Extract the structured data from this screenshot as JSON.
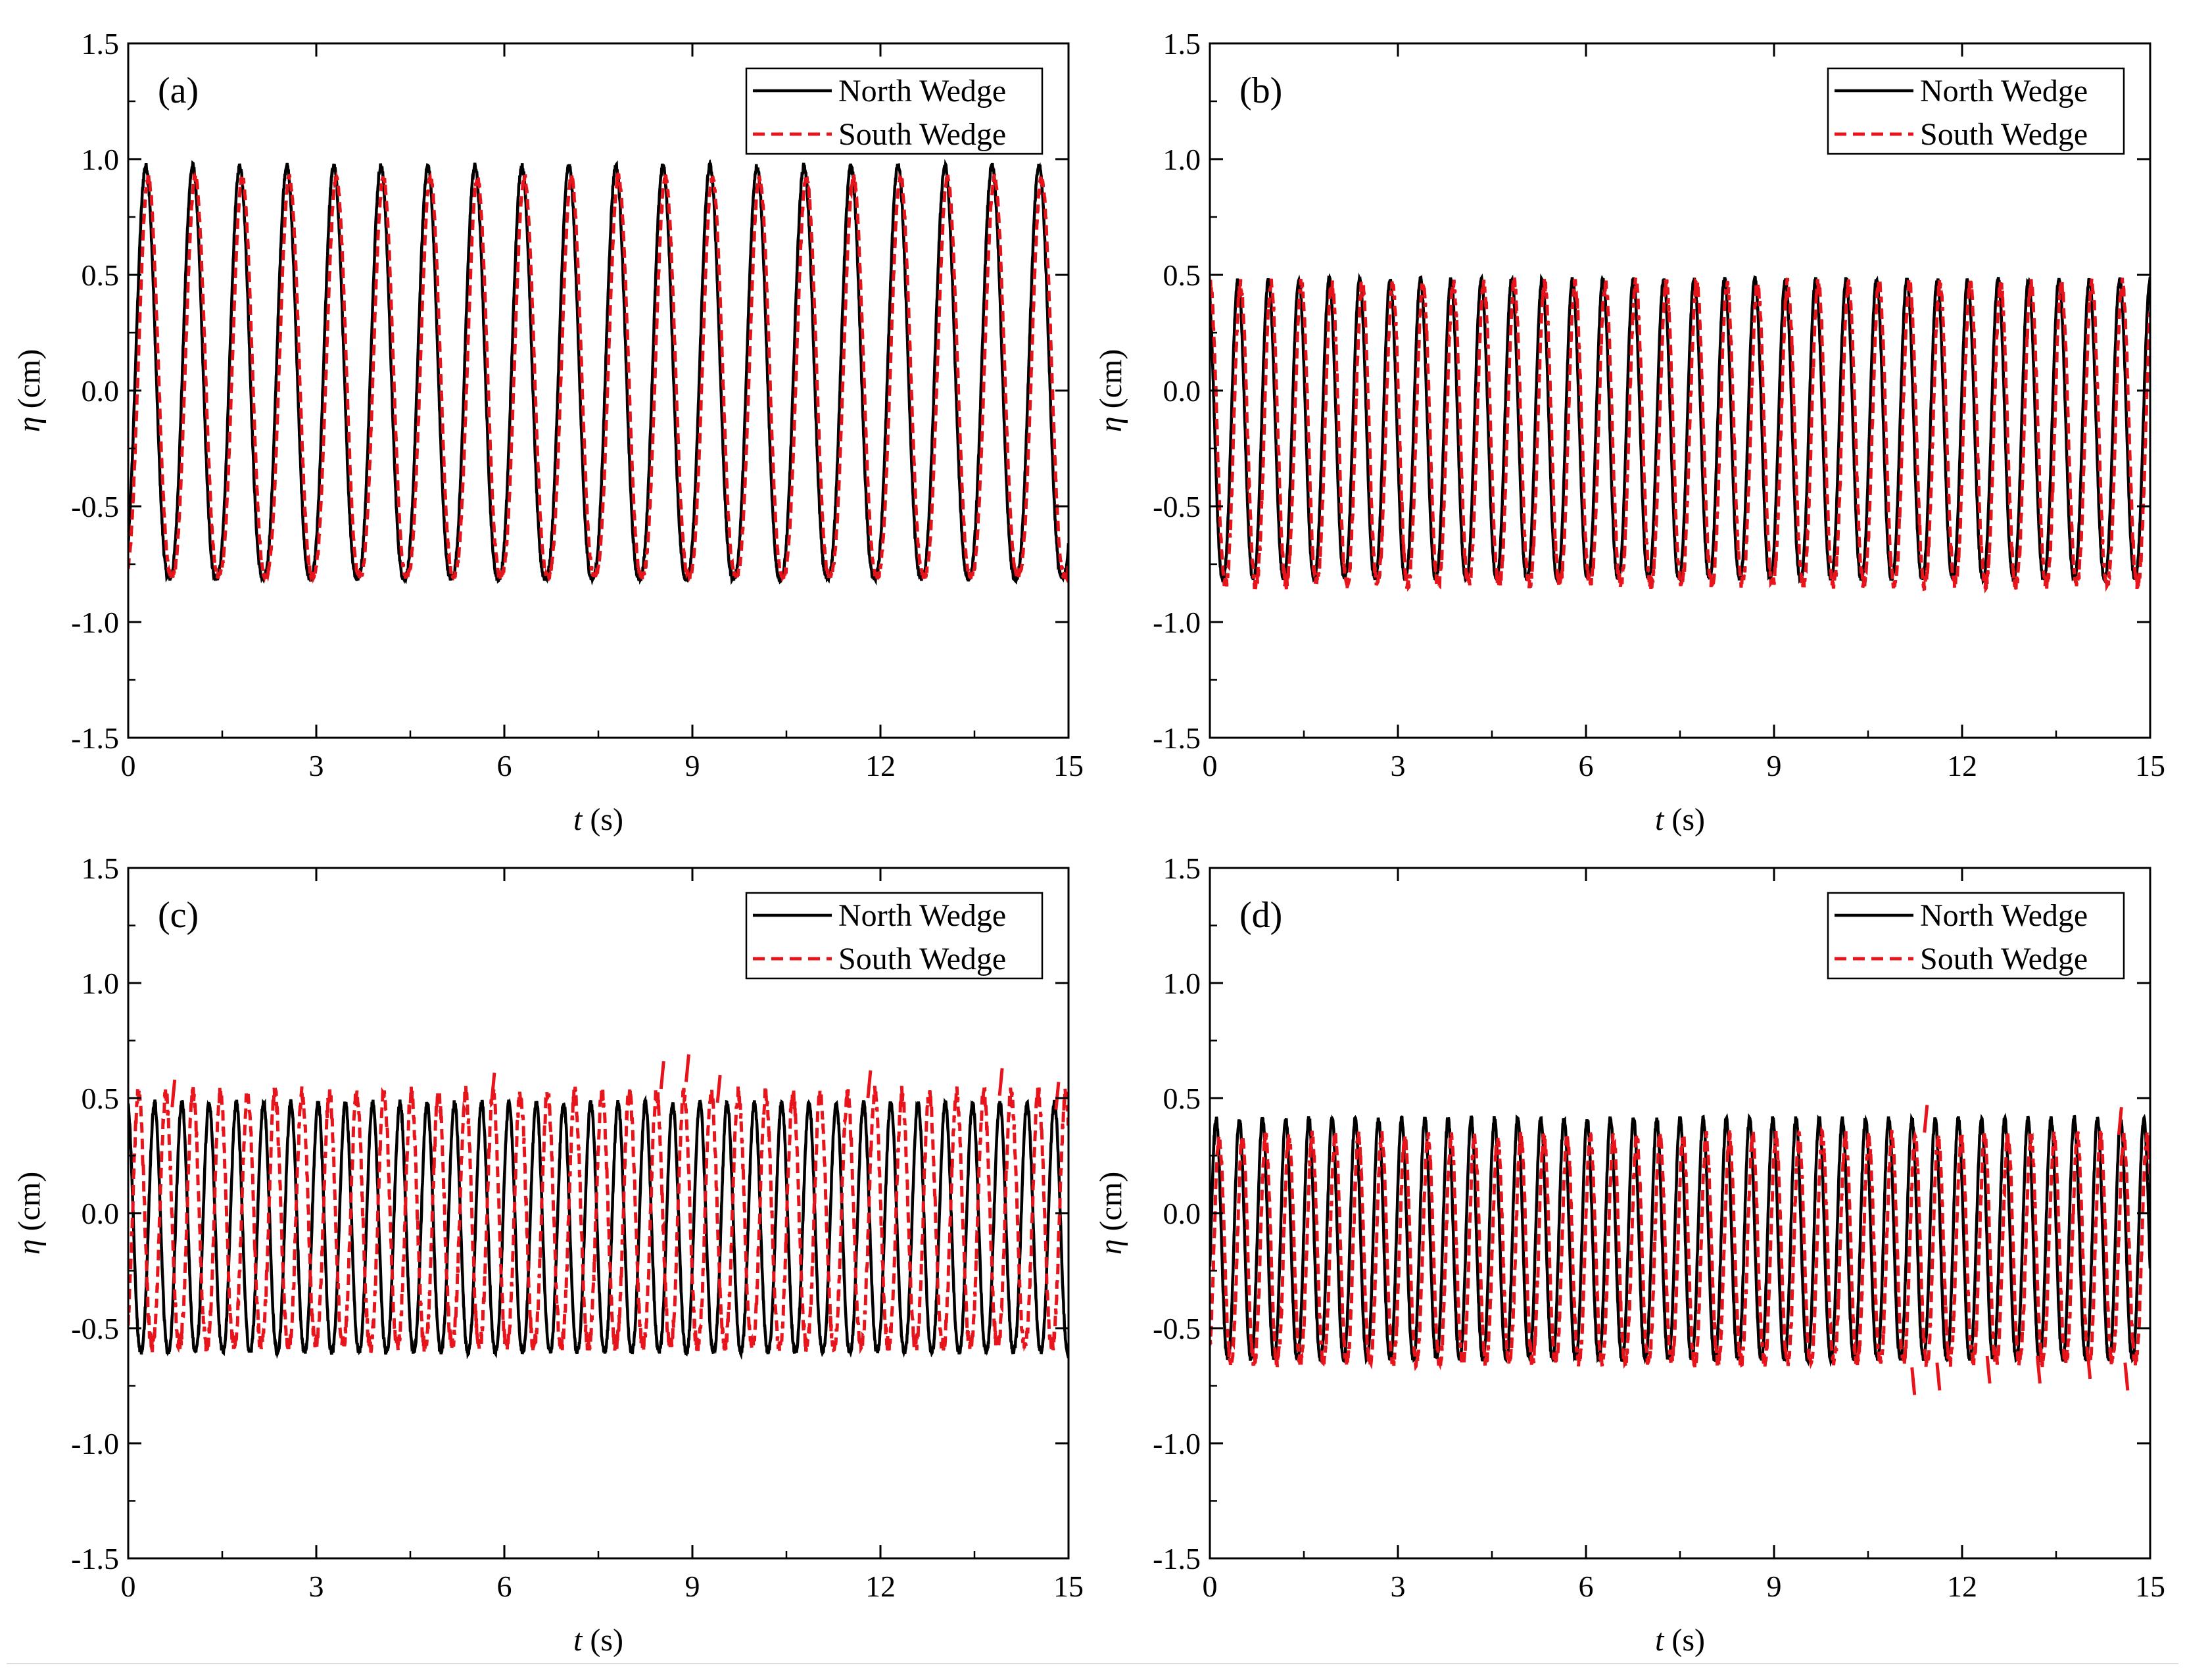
{
  "figure": {
    "colors": {
      "north": "#000000",
      "south": "#e8141b",
      "axis": "#000000",
      "footer_line": "#dddddd"
    }
  },
  "chart_data": [
    {
      "type": "line",
      "panel_label": "(a)",
      "xlabel_var": "t",
      "xlabel_unit": " (s)",
      "ylabel_var": "η",
      "ylabel_unit": " (cm)",
      "xlim": [
        0,
        15
      ],
      "ylim": [
        -1.5,
        1.5
      ],
      "xticks": [
        0,
        3,
        6,
        9,
        12,
        15
      ],
      "xtick_labels": [
        "0",
        "3",
        "6",
        "9",
        "12",
        "15"
      ],
      "yticks": [
        -1.5,
        -1.0,
        -0.5,
        0.0,
        0.5,
        1.0,
        1.5
      ],
      "ytick_labels": [
        "-1.5",
        "-1.0",
        "-0.5",
        "0.0",
        "0.5",
        "1.0",
        "1.5"
      ],
      "legend": {
        "position": "top-right",
        "entries": [
          "North Wedge",
          "South Wedge"
        ]
      },
      "series": [
        {
          "name": "North Wedge",
          "style": "solid",
          "period": 0.75,
          "phase": 0.28,
          "max": 0.97,
          "min": -0.81,
          "sharpness": 1.3,
          "noise": 0.015,
          "spikes": []
        },
        {
          "name": "South Wedge",
          "style": "dashed",
          "period": 0.75,
          "phase": 0.32,
          "max": 0.92,
          "min": -0.8,
          "sharpness": 1.3,
          "noise": 0.015,
          "spikes": []
        }
      ]
    },
    {
      "type": "line",
      "panel_label": "(b)",
      "xlabel_var": "t",
      "xlabel_unit": " (s)",
      "ylabel_var": "η",
      "ylabel_unit": " (cm)",
      "xlim": [
        0,
        15
      ],
      "ylim": [
        -1.5,
        1.5
      ],
      "xticks": [
        0,
        3,
        6,
        9,
        12,
        15
      ],
      "xtick_labels": [
        "0",
        "3",
        "6",
        "9",
        "12",
        "15"
      ],
      "yticks": [
        -1.5,
        -1.0,
        -0.5,
        0.0,
        0.5,
        1.0,
        1.5
      ],
      "ytick_labels": [
        "-1.5",
        "-1.0",
        "-0.5",
        "0.0",
        "0.5",
        "1.0",
        "1.5"
      ],
      "legend": {
        "position": "top-right",
        "entries": [
          "North Wedge",
          "South Wedge"
        ]
      },
      "series": [
        {
          "name": "North Wedge",
          "style": "solid",
          "period": 0.485,
          "phase": 0.45,
          "max": 0.48,
          "min": -0.81,
          "sharpness": 1.2,
          "noise": 0.012,
          "spikes": []
        },
        {
          "name": "South Wedge",
          "style": "dashed",
          "period": 0.485,
          "phase": 0.49,
          "max": 0.46,
          "min": -0.83,
          "sharpness": 1.2,
          "noise": 0.03,
          "spikes": []
        }
      ]
    },
    {
      "type": "line",
      "panel_label": "(c)",
      "xlabel_var": "t",
      "xlabel_unit": " (s)",
      "ylabel_var": "η",
      "ylabel_unit": " (cm)",
      "xlim": [
        0,
        15
      ],
      "ylim": [
        -1.5,
        1.5
      ],
      "xticks": [
        0,
        3,
        6,
        9,
        12,
        15
      ],
      "xtick_labels": [
        "0",
        "3",
        "6",
        "9",
        "12",
        "15"
      ],
      "yticks": [
        -1.5,
        -1.0,
        -0.5,
        0.0,
        0.5,
        1.0,
        1.5
      ],
      "ytick_labels": [
        "-1.5",
        "-1.0",
        "-0.5",
        "0.0",
        "0.5",
        "1.0",
        "1.5"
      ],
      "legend": {
        "position": "top-right",
        "entries": [
          "North Wedge",
          "South Wedge"
        ]
      },
      "series": [
        {
          "name": "North Wedge",
          "style": "solid",
          "period": 0.435,
          "phase": 0.42,
          "max": 0.48,
          "min": -0.6,
          "sharpness": 1.2,
          "noise": 0.015,
          "spikes": []
        },
        {
          "name": "South Wedge",
          "style": "dashed",
          "period": 0.435,
          "phase": 0.6,
          "max": 0.52,
          "min": -0.57,
          "sharpness": 1.2,
          "noise": 0.035,
          "spikes": [
            [
              0.7,
              0.58
            ],
            [
              5.8,
              0.61
            ],
            [
              8.5,
              0.66
            ],
            [
              8.9,
              0.69
            ],
            [
              9.4,
              0.6
            ],
            [
              11.8,
              0.62
            ],
            [
              13.9,
              0.63
            ],
            [
              14.8,
              0.57
            ]
          ]
        }
      ]
    },
    {
      "type": "line",
      "panel_label": "(d)",
      "xlabel_var": "t",
      "xlabel_unit": " (s)",
      "ylabel_var": "η",
      "ylabel_unit": " (cm)",
      "xlim": [
        0,
        15
      ],
      "ylim": [
        -1.5,
        1.5
      ],
      "xticks": [
        0,
        3,
        6,
        9,
        12,
        15
      ],
      "xtick_labels": [
        "0",
        "3",
        "6",
        "9",
        "12",
        "15"
      ],
      "yticks": [
        -1.5,
        -1.0,
        -0.5,
        0.0,
        0.5,
        1.0,
        1.5
      ],
      "ytick_labels": [
        "-1.5",
        "-1.0",
        "-0.5",
        "0.0",
        "0.5",
        "1.0",
        "1.5"
      ],
      "legend": {
        "position": "top-right",
        "entries": [
          "North Wedge",
          "South Wedge"
        ]
      },
      "series": [
        {
          "name": "North Wedge",
          "style": "solid",
          "period": 0.37,
          "phase": 0.1,
          "max": 0.41,
          "min": -0.63,
          "sharpness": 1.2,
          "noise": 0.015,
          "spikes": []
        },
        {
          "name": "South Wedge",
          "style": "dashed",
          "period": 0.37,
          "phase": 0.15,
          "max": 0.33,
          "min": -0.64,
          "sharpness": 1.2,
          "noise": 0.03,
          "spikes": [
            [
              11.2,
              -0.79
            ],
            [
              11.6,
              -0.77
            ],
            [
              12.4,
              -0.74
            ],
            [
              13.2,
              -0.74
            ],
            [
              14.0,
              -0.72
            ],
            [
              14.6,
              -0.77
            ],
            [
              11.4,
              0.47
            ],
            [
              14.5,
              0.46
            ]
          ]
        }
      ]
    }
  ]
}
